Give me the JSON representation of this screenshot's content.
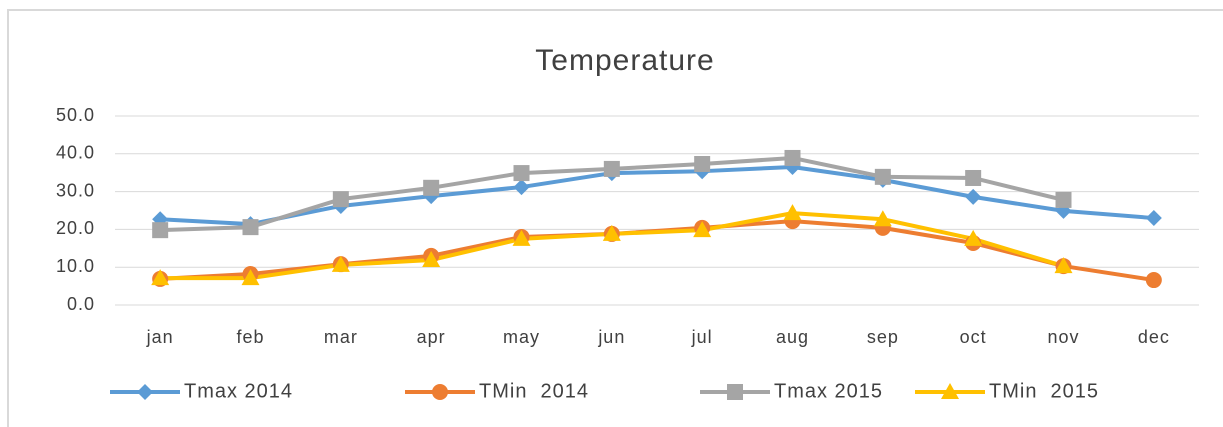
{
  "chart_data": {
    "type": "line",
    "title": "Temperature",
    "categories": [
      "jan",
      "feb",
      "mar",
      "apr",
      "may",
      "jun",
      "jul",
      "aug",
      "sep",
      "oct",
      "nov",
      "dec"
    ],
    "series": [
      {
        "name": "Tmax 2014",
        "color": "#5b9bd5",
        "marker": "diamond",
        "values": [
          22.7,
          21.4,
          26.2,
          28.8,
          31.2,
          34.9,
          35.4,
          36.5,
          33.1,
          28.6,
          24.9,
          23.0
        ]
      },
      {
        "name": "TMin  2014",
        "color": "#ed7d31",
        "marker": "circle",
        "values": [
          6.9,
          8.2,
          10.8,
          13.0,
          18.0,
          18.8,
          20.4,
          22.2,
          20.4,
          16.4,
          10.3,
          6.6
        ]
      },
      {
        "name": "Tmax 2015",
        "color": "#a5a5a5",
        "marker": "square",
        "values": [
          19.8,
          20.6,
          28.0,
          31.0,
          34.9,
          36.0,
          37.3,
          38.9,
          33.9,
          33.6,
          27.8,
          null
        ]
      },
      {
        "name": "TMin  2015",
        "color": "#ffc000",
        "marker": "triangle",
        "values": [
          7.1,
          7.1,
          10.6,
          11.9,
          17.5,
          18.8,
          19.8,
          24.3,
          22.7,
          17.5,
          10.3,
          null
        ]
      }
    ],
    "ylim": [
      0,
      50
    ],
    "yticks": [
      {
        "value": 0,
        "label": "0.0"
      },
      {
        "value": 10,
        "label": "10.0"
      },
      {
        "value": 20,
        "label": "20.0"
      },
      {
        "value": 30,
        "label": "30.0"
      },
      {
        "value": 40,
        "label": "40.0"
      },
      {
        "value": 50,
        "label": "50.0"
      }
    ],
    "grid": true,
    "legend": "bottom"
  }
}
